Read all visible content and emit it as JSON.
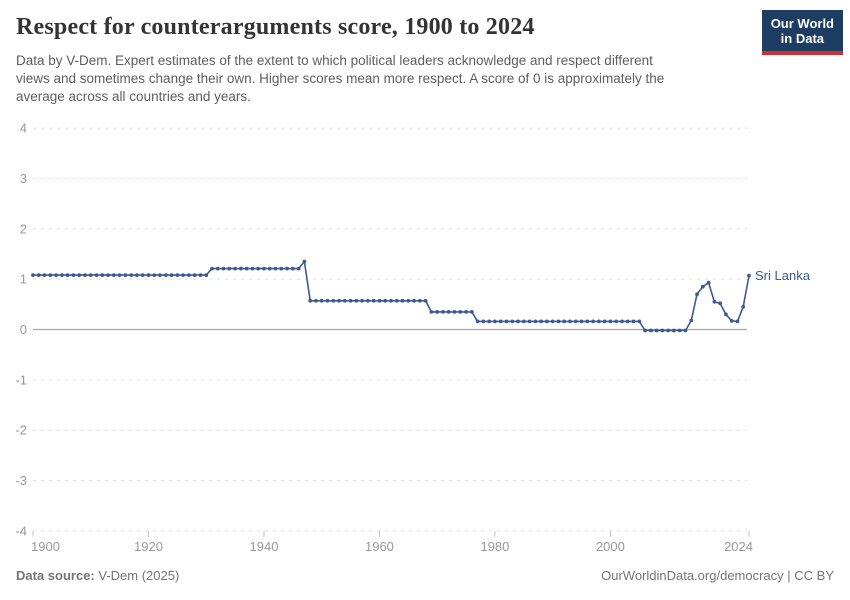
{
  "header": {
    "title": "Respect for counterarguments score, 1900 to 2024",
    "subtitle_lines": [
      "Data by V-Dem. Expert estimates of the extent to which political leaders acknowledge and respect different",
      "views and sometimes change their own. Higher scores mean more respect. A score of 0 is approximately the",
      "average across all countries and years."
    ],
    "logo": {
      "line1": "Our World",
      "line2": "in Data",
      "bg_color": "#1d3d63",
      "accent_color": "#cf2f36"
    }
  },
  "chart_data": {
    "type": "line",
    "title": "Respect for counterarguments score, 1900 to 2024",
    "xlabel": "",
    "ylabel": "",
    "xlim": [
      1900,
      2024
    ],
    "ylim": [
      -4,
      4
    ],
    "grid": "horizontal dashed",
    "legend_position": "end-of-line label",
    "x_ticks": [
      1900,
      1920,
      1940,
      1960,
      1980,
      2000,
      2024
    ],
    "y_ticks": [
      4,
      3,
      2,
      1,
      0,
      -1,
      -2,
      -3,
      -4
    ],
    "x_start": 1900,
    "x_step": 1,
    "line_color": "#3d5a96",
    "grid_color": "#dcdcdc",
    "zero_line_color": "#a5a5a5",
    "tick_label_color": "#999999",
    "series": [
      {
        "name": "Sri Lanka",
        "color": "#3d5a96",
        "values": [
          1.08,
          1.08,
          1.08,
          1.08,
          1.08,
          1.08,
          1.08,
          1.08,
          1.08,
          1.08,
          1.08,
          1.08,
          1.08,
          1.08,
          1.08,
          1.08,
          1.08,
          1.08,
          1.08,
          1.08,
          1.08,
          1.08,
          1.08,
          1.08,
          1.08,
          1.08,
          1.08,
          1.08,
          1.08,
          1.08,
          1.08,
          1.21,
          1.21,
          1.21,
          1.21,
          1.21,
          1.21,
          1.21,
          1.21,
          1.21,
          1.21,
          1.21,
          1.21,
          1.21,
          1.21,
          1.21,
          1.21,
          1.35,
          0.57,
          0.57,
          0.57,
          0.57,
          0.57,
          0.57,
          0.57,
          0.57,
          0.57,
          0.57,
          0.57,
          0.57,
          0.57,
          0.57,
          0.57,
          0.57,
          0.57,
          0.57,
          0.57,
          0.57,
          0.57,
          0.35,
          0.35,
          0.35,
          0.35,
          0.35,
          0.35,
          0.35,
          0.35,
          0.16,
          0.16,
          0.16,
          0.16,
          0.16,
          0.16,
          0.16,
          0.16,
          0.16,
          0.16,
          0.16,
          0.16,
          0.16,
          0.16,
          0.16,
          0.16,
          0.16,
          0.16,
          0.16,
          0.16,
          0.16,
          0.16,
          0.16,
          0.16,
          0.16,
          0.16,
          0.16,
          0.16,
          0.16,
          -0.02,
          -0.02,
          -0.02,
          -0.02,
          -0.02,
          -0.02,
          -0.02,
          -0.02,
          0.18,
          0.7,
          0.85,
          0.93,
          0.55,
          0.52,
          0.3,
          0.17,
          0.16,
          0.45,
          1.07
        ]
      }
    ]
  },
  "footer": {
    "source_label": "Data source:",
    "source_value": " V-Dem (2025)",
    "right_text": "OurWorldinData.org/democracy | CC BY"
  }
}
